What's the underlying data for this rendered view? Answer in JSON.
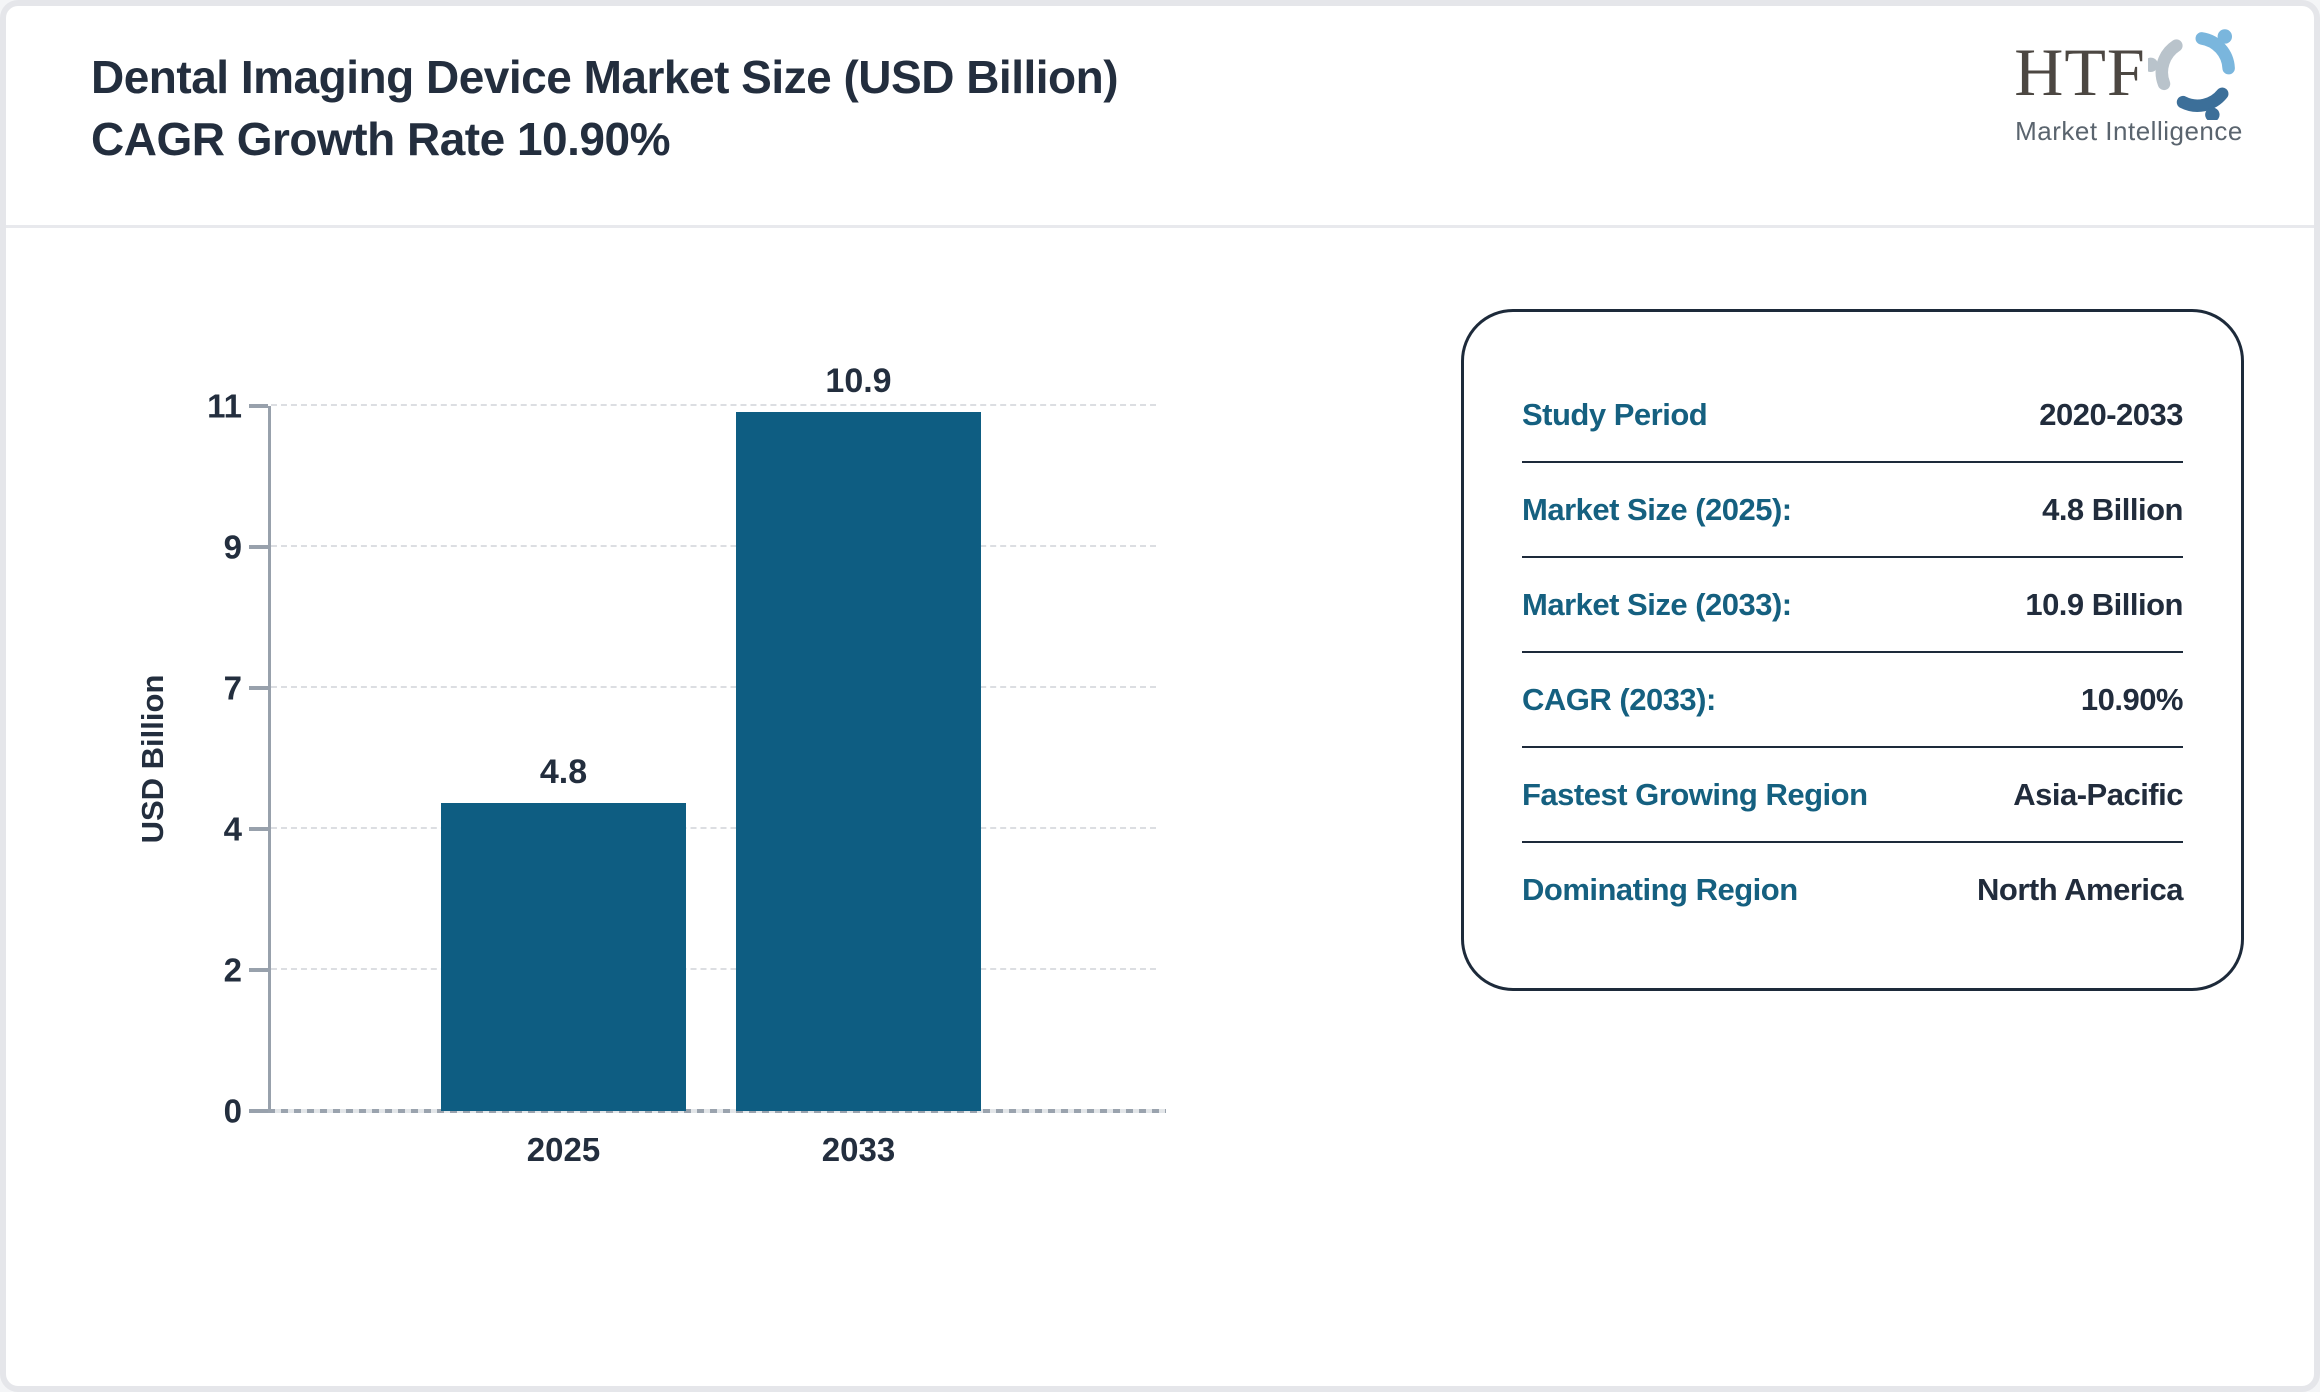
{
  "header": {
    "title_line1": "Dental Imaging Device Market Size (USD Billion)",
    "title_line2": "CAGR Growth Rate 10.90%",
    "logo": {
      "text": "HTF",
      "subtext": "Market Intelligence"
    }
  },
  "chart_data": {
    "type": "bar",
    "title": "Dental Imaging Device Market Size (USD Billion) CAGR Growth Rate 10.90%",
    "categories": [
      "2025",
      "2033"
    ],
    "values": [
      4.8,
      10.9
    ],
    "xlabel": "",
    "ylabel": "USD Billion",
    "ylim": [
      0,
      11
    ],
    "yticks": [
      "0",
      "2",
      "4",
      "7",
      "9",
      "11"
    ],
    "grid": "horizontal-dashed",
    "legend": "none",
    "bar_color": "#0e5d82"
  },
  "panel": {
    "rows": [
      {
        "label": "Study Period",
        "value": "2020-2033"
      },
      {
        "label": "Market Size (2025):",
        "value": "4.8 Billion"
      },
      {
        "label": "Market Size (2033):",
        "value": "10.9 Billion"
      },
      {
        "label": "CAGR (2033):",
        "value": "10.90%"
      },
      {
        "label": "Fastest Growing Region",
        "value": "Asia-Pacific"
      },
      {
        "label": "Dominating Region",
        "value": "North America"
      }
    ]
  },
  "colors": {
    "bar": "#0e5d82",
    "accent_teal": "#156080",
    "text_dark": "#232e3e",
    "axis_gray": "#98a1ac",
    "border_gray": "#e5e6ea",
    "panel_border": "#1d2a3a"
  }
}
